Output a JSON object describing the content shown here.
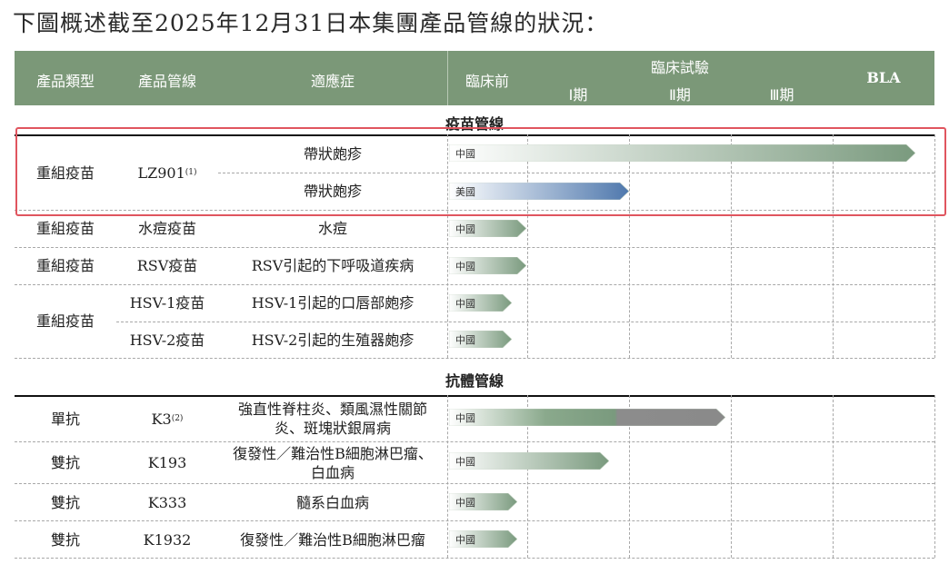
{
  "title": "下圖概述截至2025年12月31日本集團產品管線的狀況：",
  "header": {
    "category": "產品類型",
    "pipeline": "產品管線",
    "indication": "適應症",
    "preclinical": "臨床前",
    "clinical": "臨床試驗",
    "phase1": "Ⅰ期",
    "phase2": "Ⅱ期",
    "phase3": "Ⅲ期",
    "bla": "BLA"
  },
  "sections": {
    "vaccine": "疫苗管線",
    "antibody": "抗體管線"
  },
  "vaccine_rows": [
    {
      "category": "重組疫苗",
      "product": "LZ901",
      "footnote": "(1)",
      "indications": [
        "帶狀皰疹",
        "帶狀皰疹"
      ],
      "regions": [
        "中國",
        "美國"
      ],
      "stage_progress": [
        0.96,
        0.37
      ]
    },
    {
      "category": "重組疫苗",
      "product": "水痘疫苗",
      "indication": "水痘",
      "region": "中國",
      "stage_progress": 0.16
    },
    {
      "category": "重組疫苗",
      "product": "RSV疫苗",
      "indication": "RSV引起的下呼吸道疾病",
      "region": "中國",
      "stage_progress": 0.16
    },
    {
      "category": "重組疫苗",
      "products": [
        "HSV-1疫苗",
        "HSV-2疫苗"
      ],
      "indications": [
        "HSV-1引起的口唇部皰疹",
        "HSV-2引起的生殖器皰疹"
      ],
      "regions": [
        "中國",
        "中國"
      ],
      "stage_progress": [
        0.13,
        0.13
      ]
    }
  ],
  "antibody_rows": [
    {
      "category": "單抗",
      "product": "K3",
      "footnote": "(2)",
      "indication_lines": [
        "強直性脊柱炎、類風濕性關節",
        "炎、斑塊狀銀屑病"
      ],
      "region": "中國",
      "stage_progress": 0.57
    },
    {
      "category": "雙抗",
      "product": "K193",
      "indication_lines": [
        "復發性／難治性B細胞淋巴瘤、",
        "白血病"
      ],
      "region": "中國",
      "stage_progress": 0.33
    },
    {
      "category": "雙抗",
      "product": "K333",
      "indication": "髓系白血病",
      "region": "中國",
      "stage_progress": 0.14
    },
    {
      "category": "雙抗",
      "product": "K1932",
      "indication": "復發性／難治性B細胞淋巴瘤",
      "region": "中國",
      "stage_progress": 0.14
    }
  ],
  "colors": {
    "header_bg": "#7b9878",
    "bar_green": "#7a9a7e",
    "bar_blue": "#4f78ad",
    "bar_grey": "#8a8a8a",
    "highlight_border": "#e0555f"
  }
}
